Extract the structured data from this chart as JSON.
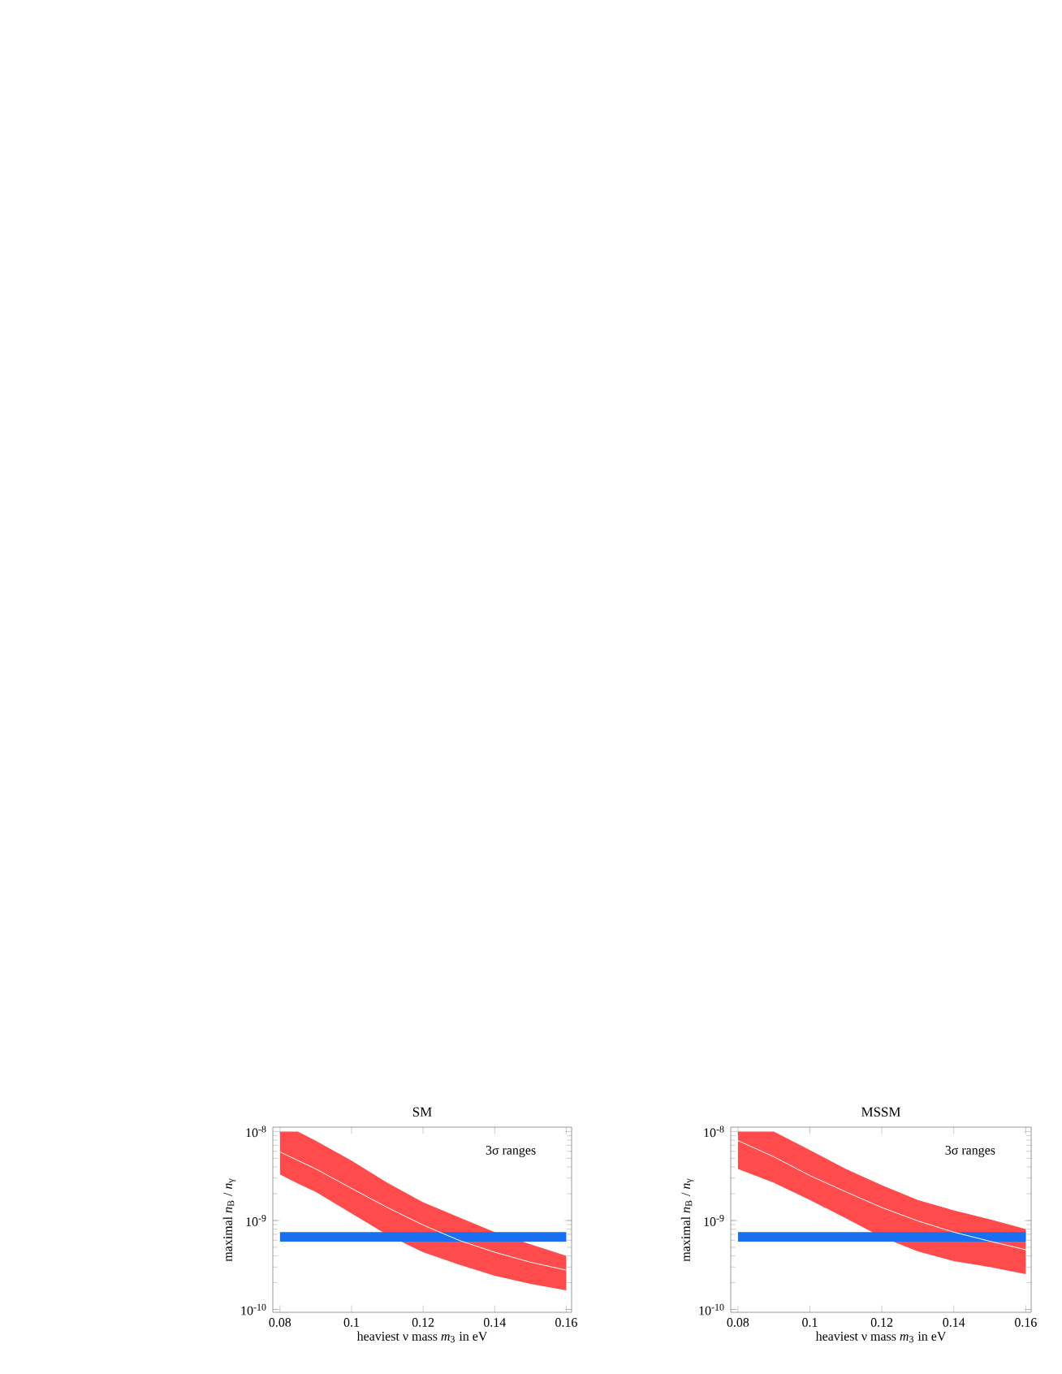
{
  "chart_data": [
    {
      "type": "line",
      "title": "SM",
      "xlabel": "heaviest ν mass *m*$_{3}$ in eV",
      "ylabel": "maximal *n*$_{B}$ / *n*$_{γ}$",
      "annotations": [
        "3σ ranges"
      ],
      "log": "y",
      "xlim": [
        0.078,
        0.1615
      ],
      "ylim": [
        9.3e-11,
        1.12e-08
      ],
      "xticks": [
        0.08,
        0.1,
        0.12,
        0.14,
        0.16
      ],
      "yticks": [
        {
          "value": 1e-10,
          "label": "10$^{-10}$"
        },
        {
          "value": 1e-09,
          "label": "10$^{-9}$"
        },
        {
          "value": 1e-08,
          "label": "10$^{-8}$"
        }
      ],
      "bands": [
        {
          "axis": "y",
          "from": 5.8e-10,
          "to": 7.4e-10,
          "color": "#1a6ef0"
        }
      ],
      "series": [
        {
          "color": "#ff4b4b",
          "x": [
            0.08,
            0.085,
            0.09,
            0.1,
            0.11,
            0.12,
            0.13,
            0.14,
            0.15,
            0.16
          ],
          "values": [
            null,
            null,
            null,
            null,
            null,
            null,
            null,
            null,
            null,
            null
          ],
          "upper": [
            1e-08,
            1e-08,
            7.9e-09,
            4.7e-09,
            2.65e-09,
            1.6e-09,
            1.09e-09,
            7.4e-10,
            5.4e-10,
            4e-10
          ],
          "lower": [
            3.3e-09,
            2.6e-09,
            2.1e-09,
            1.2e-09,
            6.9e-10,
            4.4e-10,
            3.2e-10,
            2.4e-10,
            1.94e-10,
            1.64e-10
          ]
        },
        {
          "color": "#ffffff",
          "x": [
            0.08,
            0.09,
            0.1,
            0.11,
            0.12,
            0.13,
            0.14,
            0.15,
            0.16
          ],
          "values": [
            5.9e-09,
            3.8e-09,
            2.3e-09,
            1.4e-09,
            8.9e-10,
            6e-10,
            4.4e-10,
            3.4e-10,
            2.77e-10
          ]
        }
      ]
    },
    {
      "type": "line",
      "title": "MSSM",
      "xlabel": "heaviest ν mass *m*$_{3}$ in eV",
      "ylabel": "maximal *n*$_{B}$ / *n*$_{γ}$",
      "annotations": [
        "3σ ranges"
      ],
      "log": "y",
      "xlim": [
        0.078,
        0.1615
      ],
      "ylim": [
        9.3e-11,
        1.12e-08
      ],
      "xticks": [
        0.08,
        0.1,
        0.12,
        0.14,
        0.16
      ],
      "yticks": [
        {
          "value": 1e-10,
          "label": "10$^{-10}$"
        },
        {
          "value": 1e-09,
          "label": "10$^{-9}$"
        },
        {
          "value": 1e-08,
          "label": "10$^{-8}$"
        }
      ],
      "bands": [
        {
          "axis": "y",
          "from": 5.8e-10,
          "to": 7.4e-10,
          "color": "#1a6ef0"
        }
      ],
      "series": [
        {
          "color": "#ff4b4b",
          "x": [
            0.08,
            0.09,
            0.1,
            0.11,
            0.12,
            0.13,
            0.14,
            0.15,
            0.16
          ],
          "values": [
            null,
            null,
            null,
            null,
            null,
            null,
            null,
            null,
            null
          ],
          "upper": [
            1e-08,
            1e-08,
            6.2e-09,
            3.8e-09,
            2.5e-09,
            1.7e-09,
            1.3e-09,
            1.03e-09,
            8e-10
          ],
          "lower": [
            3.8e-09,
            2.65e-09,
            1.7e-09,
            1.06e-09,
            6.5e-10,
            4.5e-10,
            3.5e-10,
            3e-10,
            2.5e-10
          ]
        },
        {
          "color": "#ffffff",
          "x": [
            0.08,
            0.09,
            0.1,
            0.11,
            0.12,
            0.13,
            0.14,
            0.15,
            0.16
          ],
          "values": [
            7.9e-09,
            5.2e-09,
            3.2e-09,
            2.1e-09,
            1.4e-09,
            9.9e-10,
            7.4e-10,
            5.85e-10,
            4.7e-10
          ]
        }
      ]
    }
  ]
}
